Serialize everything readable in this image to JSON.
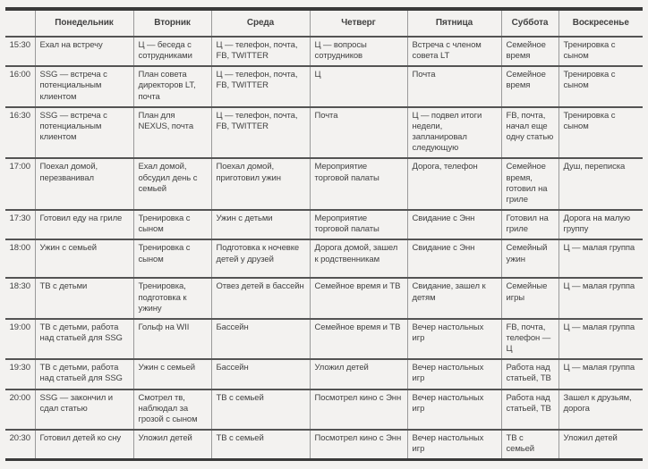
{
  "table": {
    "columns": [
      "",
      "Понедельник",
      "Вторник",
      "Среда",
      "Четверг",
      "Пятница",
      "Суббота",
      "Воскресенье"
    ],
    "rows": [
      {
        "time": "15:30",
        "cells": [
          "Ехал на встречу",
          "Ц — беседа с сотрудниками",
          "Ц — телефон, почта, FB, TWITTER",
          "Ц — вопросы сотрудников",
          "Встреча с членом совета LT",
          "Семейное время",
          "Тренировка с сыном"
        ]
      },
      {
        "time": "16:00",
        "cells": [
          "SSG — встреча с потенциальным клиентом",
          "План совета директоров LT, почта",
          "Ц — телефон, почта, FB, TWITTER",
          "Ц",
          "Почта",
          "Семейное время",
          "Тренировка с сыном"
        ]
      },
      {
        "time": "16:30",
        "cells": [
          "SSG — встреча с потенциальным клиентом",
          "План для NEXUS, почта",
          "Ц — телефон, почта, FB, TWITTER",
          "Почта",
          "Ц — подвел итоги недели, запланировал следующую",
          "FB, почта, начал еще одну статью",
          "Тренировка с сыном"
        ]
      },
      {
        "time": "17:00",
        "cells": [
          "Поехал домой, перезванивал",
          "Ехал домой, обсудил день с семьей",
          "Поехал домой, приготовил ужин",
          "Мероприятие торговой палаты",
          "Дорога, телефон",
          "Семейное время, готовил на гриле",
          "Душ, переписка"
        ]
      },
      {
        "time": "17:30",
        "cells": [
          "Готовил еду на гриле",
          "Тренировка с сыном",
          "Ужин с детьми",
          "Мероприятие торговой палаты",
          "Свидание с Энн",
          "Готовил на гриле",
          "Дорога на малую группу"
        ]
      },
      {
        "time": "18:00",
        "cells": [
          "Ужин с семьей",
          "Тренировка с сыном",
          "Подготовка к ночевке детей у друзей",
          "Дорога домой, зашел к родственникам",
          "Свидание с Энн",
          "Семейный ужин",
          "Ц — малая группа"
        ]
      },
      {
        "time": "18:30",
        "cells": [
          "ТВ с детьми",
          "Тренировка, подготовка к ужину",
          "Отвез детей в бассейн",
          "Семейное время и ТВ",
          "Свидание, зашел к детям",
          "Семейные игры",
          "Ц — малая группа"
        ]
      },
      {
        "time": "19:00",
        "cells": [
          "ТВ с детьми, работа над статьей для SSG",
          "Гольф на WII",
          "Бассейн",
          "Семейное время и ТВ",
          "Вечер настольных игр",
          "FB, почта, телефон — Ц",
          "Ц — малая группа"
        ]
      },
      {
        "time": "19:30",
        "cells": [
          "ТВ с детьми, работа над статьей для SSG",
          "Ужин с семьей",
          "Бассейн",
          "Уложил детей",
          "Вечер настольных игр",
          "Работа над статьей, ТВ",
          "Ц — малая группа"
        ]
      },
      {
        "time": "20:00",
        "cells": [
          "SSG — закончил и сдал статью",
          "Смотрел тв, наблюдал за грозой с сыном",
          "ТВ с семьей",
          "Посмотрел кино с Энн",
          "Вечер настольных игр",
          "Работа над статьей, ТВ",
          "Зашел к друзьям, дорога"
        ]
      },
      {
        "time": "20:30",
        "cells": [
          "Готовил детей ко сну",
          "Уложил детей",
          "ТВ с семьей",
          "Посмотрел кино с Энн",
          "Вечер настольных игр",
          "ТВ с семьей",
          "Уложил детей"
        ]
      }
    ]
  }
}
